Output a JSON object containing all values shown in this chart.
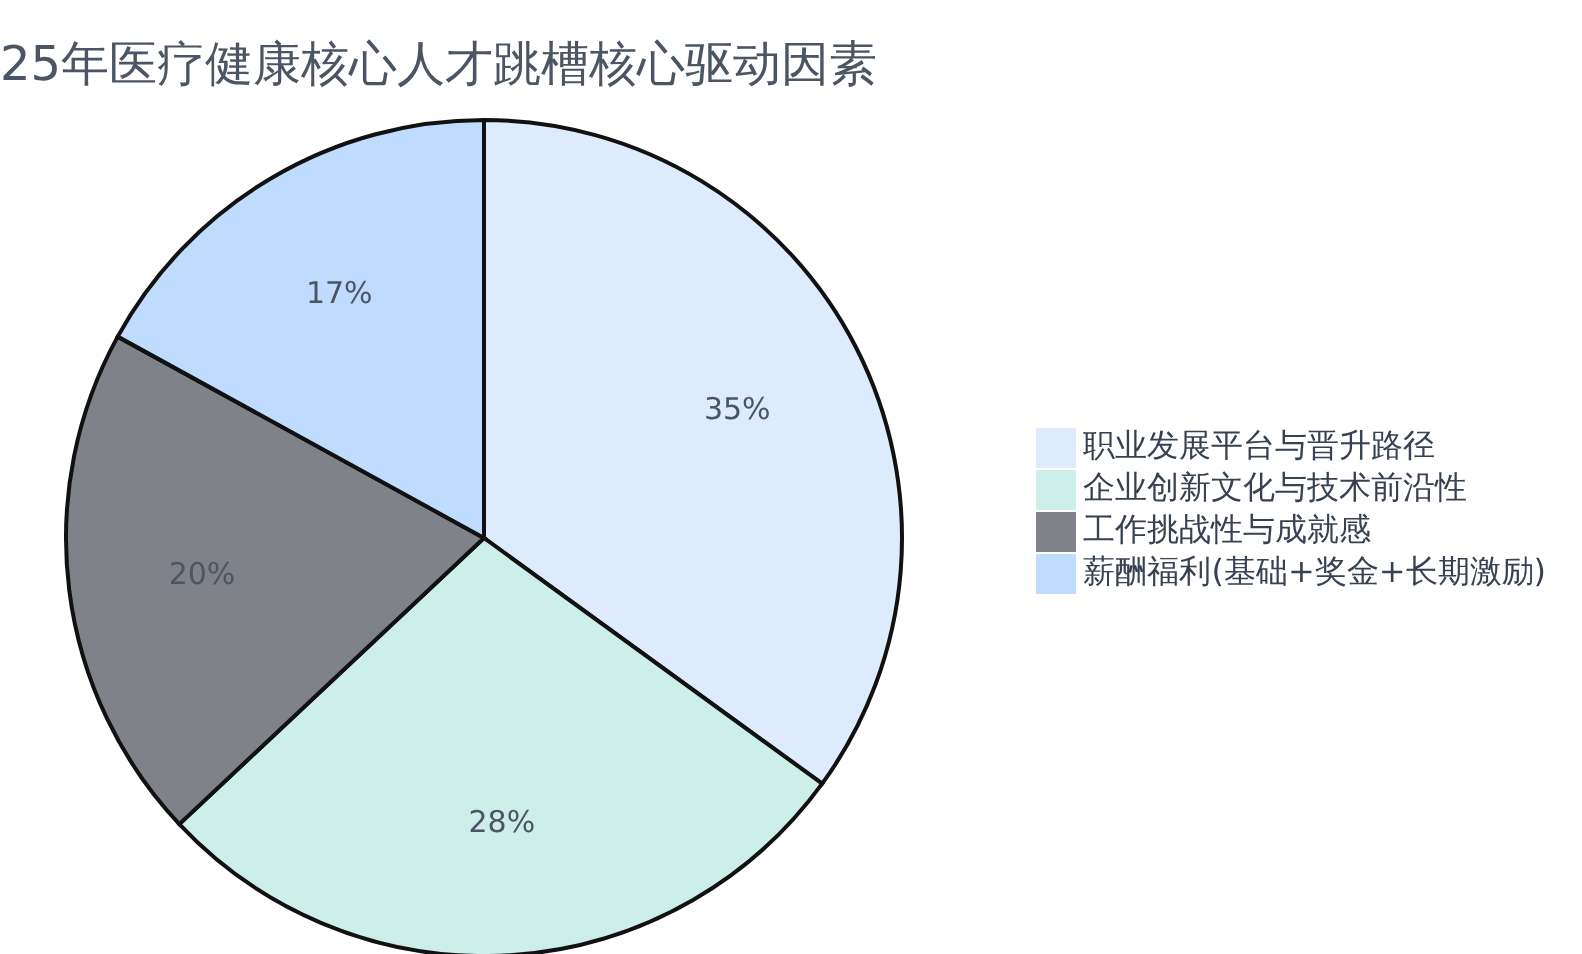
{
  "chart_data": {
    "type": "pie",
    "title": "25年医疗健康核心人才跳槽核心驱动因素",
    "categories": [
      "职业发展平台与晋升路径",
      "企业创新文化与技术前沿性",
      "工作挑战性与成就感",
      "薪酬福利(基础+奖金+长期激励)"
    ],
    "values": [
      35,
      28,
      20,
      17
    ],
    "value_labels": [
      "35%",
      "28%",
      "20%",
      "17%"
    ],
    "colors": [
      "#deebfd",
      "#cdefea",
      "#7f8389",
      "#bfdbfe"
    ],
    "legend": "right"
  }
}
